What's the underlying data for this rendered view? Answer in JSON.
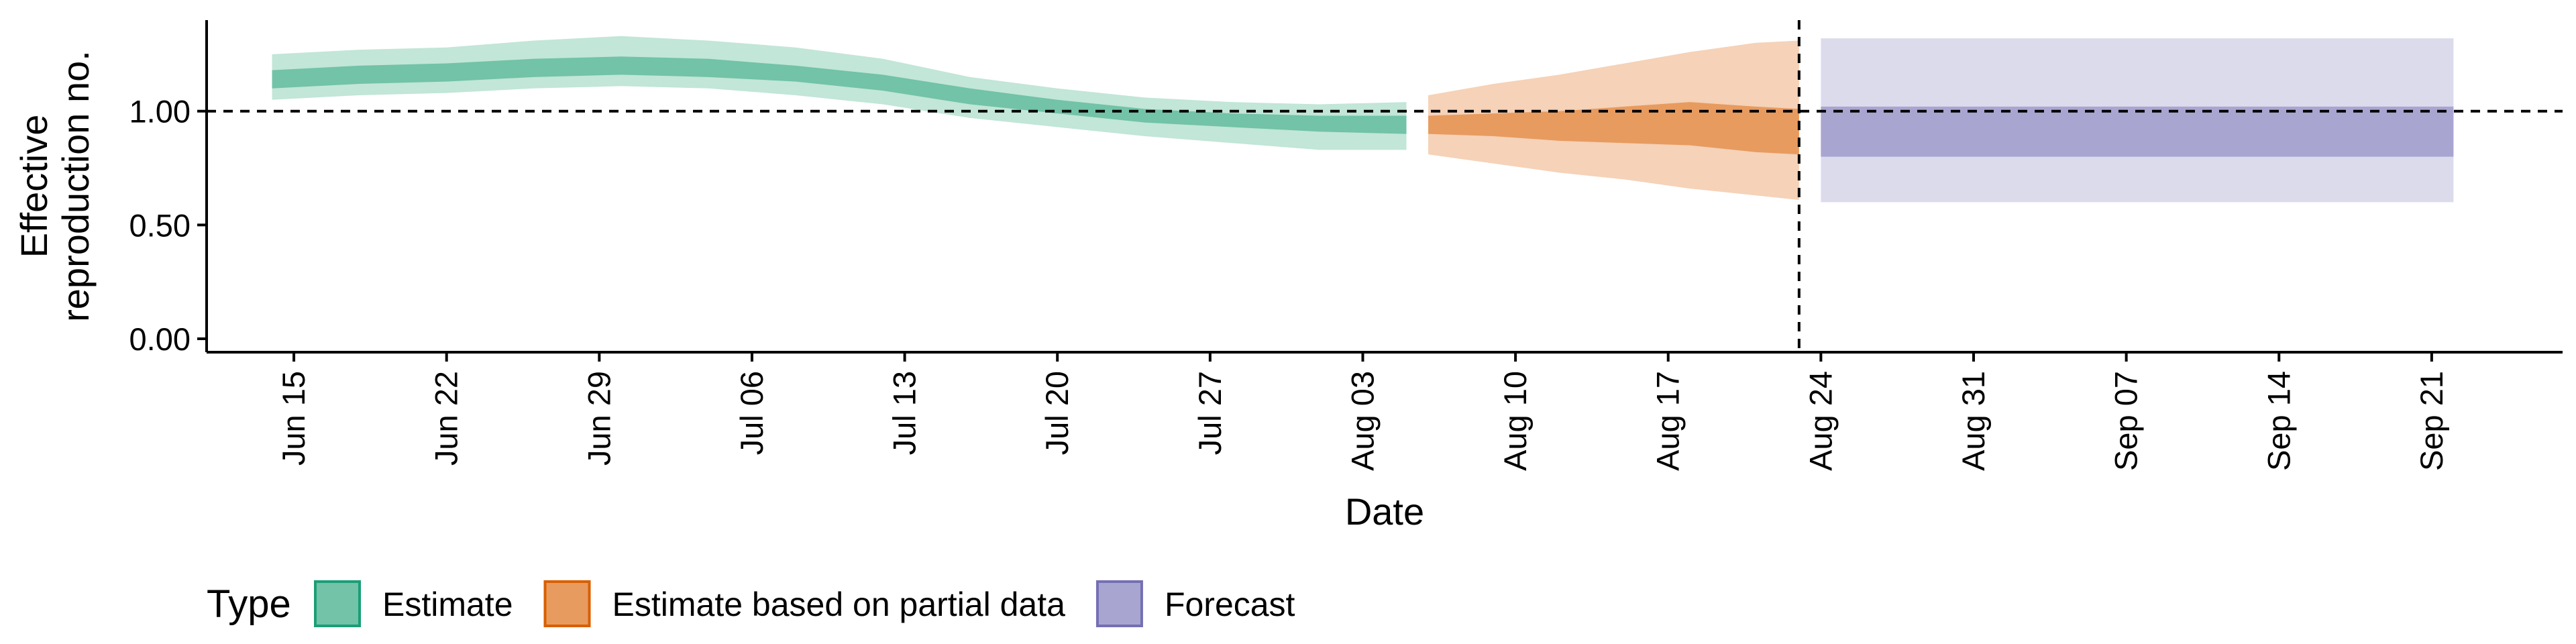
{
  "chart_data": {
    "type": "area",
    "title": "",
    "xlabel": "Date",
    "ylabel": [
      "Effective",
      "reproduction no."
    ],
    "xlim": [
      "2020-06-11",
      "2020-09-27"
    ],
    "ylim": [
      0.0,
      1.4
    ],
    "y_ticks": [
      {
        "value": 0.0,
        "label": "0.00"
      },
      {
        "value": 0.5,
        "label": "0.50"
      },
      {
        "value": 1.0,
        "label": "1.00"
      }
    ],
    "x_ticks": [
      {
        "date": "2020-06-15",
        "label": "Jun 15"
      },
      {
        "date": "2020-06-22",
        "label": "Jun 22"
      },
      {
        "date": "2020-06-29",
        "label": "Jun 29"
      },
      {
        "date": "2020-07-06",
        "label": "Jul 06"
      },
      {
        "date": "2020-07-13",
        "label": "Jul 13"
      },
      {
        "date": "2020-07-20",
        "label": "Jul 20"
      },
      {
        "date": "2020-07-27",
        "label": "Jul 27"
      },
      {
        "date": "2020-08-03",
        "label": "Aug 03"
      },
      {
        "date": "2020-08-10",
        "label": "Aug 10"
      },
      {
        "date": "2020-08-17",
        "label": "Aug 17"
      },
      {
        "date": "2020-08-24",
        "label": "Aug 24"
      },
      {
        "date": "2020-08-31",
        "label": "Aug 31"
      },
      {
        "date": "2020-09-07",
        "label": "Sep 07"
      },
      {
        "date": "2020-09-14",
        "label": "Sep 14"
      },
      {
        "date": "2020-09-21",
        "label": "Sep 21"
      }
    ],
    "reference_lines": [
      {
        "orientation": "horizontal",
        "value": 1.0,
        "style": "dashed"
      },
      {
        "orientation": "vertical",
        "date": "2020-08-23",
        "style": "dashed"
      }
    ],
    "grid": false,
    "legend": {
      "title": "Type",
      "position": "bottom-left",
      "entries": [
        {
          "label": "Estimate",
          "fill": "#72c3a7",
          "stroke": "#1b9e77"
        },
        {
          "label": "Estimate based on partial data",
          "fill": "#e89b5f",
          "stroke": "#d95f02"
        },
        {
          "label": "Forecast",
          "fill": "#a9a5d1",
          "stroke": "#7570b3"
        }
      ]
    },
    "series": [
      {
        "name": "Estimate",
        "outer_color": "#c2e6d8",
        "inner_color": "#72c3a7",
        "points": [
          {
            "x": "2020-06-14",
            "lower_90": 1.05,
            "lower_50": 1.1,
            "upper_50": 1.18,
            "upper_90": 1.25
          },
          {
            "x": "2020-06-18",
            "lower_90": 1.07,
            "lower_50": 1.12,
            "upper_50": 1.2,
            "upper_90": 1.27
          },
          {
            "x": "2020-06-22",
            "lower_90": 1.08,
            "lower_50": 1.13,
            "upper_50": 1.21,
            "upper_90": 1.28
          },
          {
            "x": "2020-06-26",
            "lower_90": 1.1,
            "lower_50": 1.15,
            "upper_50": 1.23,
            "upper_90": 1.31
          },
          {
            "x": "2020-06-30",
            "lower_90": 1.11,
            "lower_50": 1.16,
            "upper_50": 1.24,
            "upper_90": 1.33
          },
          {
            "x": "2020-07-04",
            "lower_90": 1.1,
            "lower_50": 1.15,
            "upper_50": 1.23,
            "upper_90": 1.31
          },
          {
            "x": "2020-07-08",
            "lower_90": 1.07,
            "lower_50": 1.13,
            "upper_50": 1.2,
            "upper_90": 1.28
          },
          {
            "x": "2020-07-12",
            "lower_90": 1.03,
            "lower_50": 1.09,
            "upper_50": 1.16,
            "upper_90": 1.23
          },
          {
            "x": "2020-07-16",
            "lower_90": 0.97,
            "lower_50": 1.03,
            "upper_50": 1.1,
            "upper_90": 1.15
          },
          {
            "x": "2020-07-20",
            "lower_90": 0.93,
            "lower_50": 0.99,
            "upper_50": 1.05,
            "upper_90": 1.1
          },
          {
            "x": "2020-07-24",
            "lower_90": 0.89,
            "lower_50": 0.95,
            "upper_50": 1.01,
            "upper_90": 1.06
          },
          {
            "x": "2020-07-28",
            "lower_90": 0.86,
            "lower_50": 0.93,
            "upper_50": 0.99,
            "upper_90": 1.04
          },
          {
            "x": "2020-08-01",
            "lower_90": 0.83,
            "lower_50": 0.91,
            "upper_50": 0.98,
            "upper_90": 1.03
          },
          {
            "x": "2020-08-05",
            "lower_90": 0.83,
            "lower_50": 0.9,
            "upper_50": 0.98,
            "upper_90": 1.04
          }
        ]
      },
      {
        "name": "Estimate based on partial data",
        "outer_color": "#f5d2b8",
        "inner_color": "#e89b5f",
        "points": [
          {
            "x": "2020-08-06",
            "lower_90": 0.81,
            "lower_50": 0.9,
            "upper_50": 0.98,
            "upper_90": 1.07
          },
          {
            "x": "2020-08-09",
            "lower_90": 0.77,
            "lower_50": 0.89,
            "upper_50": 0.99,
            "upper_90": 1.12
          },
          {
            "x": "2020-08-12",
            "lower_90": 0.73,
            "lower_50": 0.87,
            "upper_50": 1.0,
            "upper_90": 1.16
          },
          {
            "x": "2020-08-15",
            "lower_90": 0.7,
            "lower_50": 0.86,
            "upper_50": 1.02,
            "upper_90": 1.21
          },
          {
            "x": "2020-08-18",
            "lower_90": 0.66,
            "lower_50": 0.85,
            "upper_50": 1.04,
            "upper_90": 1.26
          },
          {
            "x": "2020-08-21",
            "lower_90": 0.63,
            "lower_50": 0.82,
            "upper_50": 1.02,
            "upper_90": 1.3
          },
          {
            "x": "2020-08-23",
            "lower_90": 0.61,
            "lower_50": 0.81,
            "upper_50": 1.01,
            "upper_90": 1.31
          }
        ]
      },
      {
        "name": "Forecast",
        "outer_color": "#dcdbec",
        "inner_color": "#a9a5d1",
        "points": [
          {
            "x": "2020-08-24",
            "lower_90": 0.6,
            "lower_50": 0.8,
            "upper_50": 1.02,
            "upper_90": 1.32
          },
          {
            "x": "2020-09-22",
            "lower_90": 0.6,
            "lower_50": 0.8,
            "upper_50": 1.02,
            "upper_90": 1.32
          }
        ]
      }
    ]
  }
}
